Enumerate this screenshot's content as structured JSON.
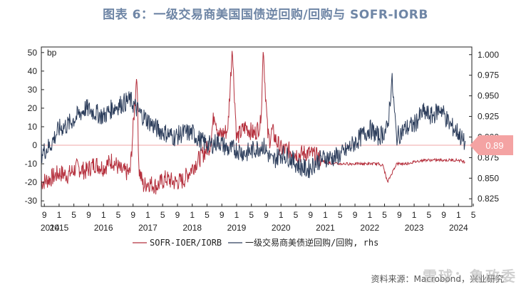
{
  "title": "图表 6：一级交易商美国国债逆回购/回购与 SOFR-IORB",
  "source": "资料来源：Macrobond，兴业研究",
  "watermark": "雪球：鲁政委",
  "colors": {
    "title": "#6f86a6",
    "sofr": "#b5303d",
    "repo": "#2d3e5c",
    "zero_line": "#f2a7a7",
    "marker": "#f4a3a3"
  },
  "chart_data": {
    "type": "line",
    "left_axis": {
      "unit_label": "bp",
      "ylim": [
        -33,
        53
      ],
      "ticks": [
        "50",
        "40",
        "30",
        "20",
        "10",
        "0",
        "-10",
        "-20",
        "-30"
      ]
    },
    "right_axis": {
      "ylim": [
        0.8157,
        1.0093
      ],
      "ticks": [
        "1.000",
        "0.975",
        "0.950",
        "0.925",
        "0.900",
        "0.875",
        "0.850",
        "0.825"
      ]
    },
    "x_axis": {
      "range": [
        2014.6,
        2024.3
      ],
      "month_ticks": [
        "9",
        "1",
        "5",
        "9",
        "1",
        "5",
        "9",
        "1",
        "5",
        "9",
        "1",
        "5",
        "9",
        "1",
        "5",
        "9",
        "1",
        "5",
        "9",
        "1",
        "5",
        "9",
        "1",
        "5",
        "9",
        "1",
        "5",
        "9",
        "1",
        "5"
      ],
      "month_values": [
        2014.667,
        2015.0,
        2015.333,
        2015.667,
        2016.0,
        2016.333,
        2016.667,
        2017.0,
        2017.333,
        2017.667,
        2018.0,
        2018.333,
        2018.667,
        2019.0,
        2019.333,
        2019.667,
        2020.0,
        2020.333,
        2020.667,
        2021.0,
        2021.333,
        2021.667,
        2022.0,
        2022.333,
        2022.667,
        2023.0,
        2023.333,
        2023.667,
        2024.0,
        2024.333
      ],
      "year_labels": [
        "2014",
        "2015",
        "2016",
        "2017",
        "2018",
        "2019",
        "2020",
        "2021",
        "2022",
        "2023",
        "2024"
      ],
      "year_values": [
        2014.667,
        2015.0,
        2016.0,
        2017.0,
        2018.0,
        2019.0,
        2020.0,
        2021.0,
        2022.0,
        2023.0,
        2024.0
      ]
    },
    "marker_label": "0.89",
    "legend": [
      "SOFR-IOER/IORB",
      "一级交易商美债逆回购/回购, rhs"
    ],
    "series": [
      {
        "name": "SOFR-IOER/IORB",
        "axis": "left",
        "x": [
          2014.6,
          2014.8,
          2015.0,
          2015.2,
          2015.4,
          2015.6,
          2015.8,
          2016.0,
          2016.2,
          2016.4,
          2016.6,
          2016.75,
          2016.8,
          2016.9,
          2017.0,
          2017.2,
          2017.4,
          2017.6,
          2017.8,
          2018.0,
          2018.2,
          2018.4,
          2018.5,
          2018.6,
          2018.8,
          2018.9,
          2019.0,
          2019.2,
          2019.4,
          2019.55,
          2019.6,
          2019.7,
          2019.75,
          2019.8,
          2019.9,
          2020.0,
          2020.2,
          2020.4,
          2020.6,
          2020.8,
          2021.0,
          2021.2,
          2021.4,
          2021.6,
          2021.8,
          2022.0,
          2022.2,
          2022.3,
          2022.4,
          2022.6,
          2022.8,
          2023.0,
          2023.2,
          2023.4,
          2023.6,
          2023.8,
          2024.0,
          2024.15
        ],
        "values": [
          -20,
          -18,
          -15,
          -16,
          -12,
          -14,
          -10,
          -12,
          -8,
          -14,
          -15,
          38,
          -13,
          -22,
          -20,
          -22,
          -18,
          -20,
          -19,
          -12,
          -6,
          0,
          18,
          5,
          8,
          52,
          4,
          10,
          6,
          12,
          52,
          6,
          3,
          8,
          2,
          -2,
          -3,
          -5,
          -4,
          -6,
          -9,
          -10,
          -10,
          -10,
          -10,
          -10,
          -10,
          -11,
          -20,
          -10,
          -10,
          -9,
          -8,
          -8,
          -8,
          -8,
          -8,
          -9
        ]
      },
      {
        "name": "一级交易商美债逆回购/回购, rhs",
        "axis": "right",
        "x": [
          2014.6,
          2014.8,
          2015.0,
          2015.2,
          2015.4,
          2015.6,
          2015.8,
          2016.0,
          2016.2,
          2016.4,
          2016.6,
          2016.8,
          2017.0,
          2017.2,
          2017.4,
          2017.6,
          2017.8,
          2018.0,
          2018.2,
          2018.4,
          2018.6,
          2018.8,
          2019.0,
          2019.2,
          2019.4,
          2019.6,
          2019.8,
          2020.0,
          2020.2,
          2020.4,
          2020.6,
          2020.8,
          2021.0,
          2021.2,
          2021.4,
          2021.6,
          2021.8,
          2022.0,
          2022.2,
          2022.4,
          2022.5,
          2022.6,
          2022.8,
          2023.0,
          2023.2,
          2023.4,
          2023.6,
          2023.8,
          2024.0,
          2024.15
        ],
        "values": [
          0.88,
          0.89,
          0.91,
          0.915,
          0.925,
          0.935,
          0.93,
          0.925,
          0.935,
          0.94,
          0.945,
          0.93,
          0.92,
          0.91,
          0.905,
          0.9,
          0.905,
          0.905,
          0.895,
          0.89,
          0.895,
          0.885,
          0.885,
          0.88,
          0.885,
          0.89,
          0.87,
          0.88,
          0.875,
          0.865,
          0.86,
          0.87,
          0.875,
          0.875,
          0.88,
          0.89,
          0.9,
          0.91,
          0.9,
          0.91,
          0.97,
          0.9,
          0.91,
          0.915,
          0.93,
          0.925,
          0.935,
          0.915,
          0.905,
          0.89
        ]
      }
    ]
  }
}
